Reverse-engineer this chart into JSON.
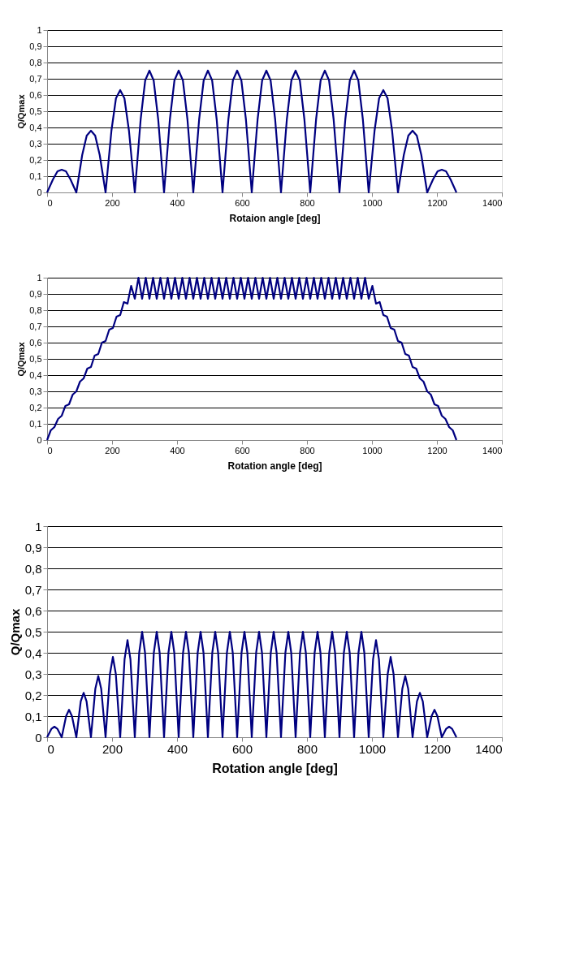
{
  "chart_data": [
    {
      "type": "line",
      "xlabel": "Rotaion angle [deg]",
      "ylabel": "Q/Qmax",
      "xlim": [
        0,
        1400
      ],
      "ylim": [
        0,
        1
      ],
      "xticks": [
        0,
        200,
        400,
        600,
        800,
        1000,
        1200,
        1400
      ],
      "yticks": [
        0,
        {
          "value": 0.1,
          "label": "0,1"
        },
        {
          "value": 0.2,
          "label": "0,2"
        },
        {
          "value": 0.3,
          "label": "0,3"
        },
        {
          "value": 0.4,
          "label": "0,4"
        },
        {
          "value": 0.5,
          "label": "0,5"
        },
        {
          "value": 0.6,
          "label": "0,6"
        },
        {
          "value": 0.7,
          "label": "0,7"
        },
        {
          "value": 0.8,
          "label": "0,8"
        },
        {
          "value": 0.9,
          "label": "0,9"
        },
        1
      ],
      "grid": "y",
      "marker": "none",
      "line_style": "solid",
      "series": [
        {
          "color": "#000080",
          "x": [
            0,
            18,
            32,
            45,
            58,
            72,
            90,
            108,
            122,
            135,
            148,
            162,
            180,
            198,
            212,
            225,
            238,
            252,
            270,
            288,
            302,
            315,
            328,
            342,
            360,
            378,
            392,
            405,
            418,
            432,
            450,
            468,
            482,
            495,
            508,
            522,
            540,
            558,
            572,
            585,
            598,
            612,
            630,
            648,
            662,
            675,
            688,
            702,
            720,
            738,
            752,
            765,
            778,
            792,
            810,
            828,
            842,
            855,
            868,
            882,
            900,
            918,
            932,
            945,
            958,
            972,
            990,
            1008,
            1022,
            1035,
            1048,
            1062,
            1080,
            1098,
            1112,
            1125,
            1138,
            1152,
            1170,
            1188,
            1202,
            1215,
            1228,
            1242,
            1260
          ],
          "values": [
            0,
            0.08,
            0.13,
            0.14,
            0.13,
            0.08,
            0,
            0.23,
            0.35,
            0.38,
            0.35,
            0.23,
            0,
            0.38,
            0.58,
            0.63,
            0.58,
            0.38,
            0,
            0.45,
            0.69,
            0.75,
            0.69,
            0.45,
            0,
            0.45,
            0.69,
            0.75,
            0.69,
            0.45,
            0,
            0.45,
            0.69,
            0.75,
            0.69,
            0.45,
            0,
            0.45,
            0.69,
            0.75,
            0.69,
            0.45,
            0,
            0.45,
            0.69,
            0.75,
            0.69,
            0.45,
            0,
            0.45,
            0.69,
            0.75,
            0.69,
            0.45,
            0,
            0.45,
            0.69,
            0.75,
            0.69,
            0.45,
            0,
            0.45,
            0.69,
            0.75,
            0.69,
            0.45,
            0,
            0.38,
            0.58,
            0.63,
            0.58,
            0.38,
            0,
            0.23,
            0.35,
            0.38,
            0.35,
            0.23,
            0,
            0.08,
            0.13,
            0.14,
            0.13,
            0.08,
            0
          ]
        }
      ]
    },
    {
      "type": "line",
      "xlabel": "Rotation angle [deg]",
      "ylabel": "Q/Qmax",
      "xlim": [
        0,
        1400
      ],
      "ylim": [
        0,
        1
      ],
      "xticks": [
        0,
        200,
        400,
        600,
        800,
        1000,
        1200,
        1400
      ],
      "yticks": [
        0,
        {
          "value": 0.1,
          "label": "0,1"
        },
        {
          "value": 0.2,
          "label": "0,2"
        },
        {
          "value": 0.3,
          "label": "0,3"
        },
        {
          "value": 0.4,
          "label": "0,4"
        },
        {
          "value": 0.5,
          "label": "0,5"
        },
        {
          "value": 0.6,
          "label": "0,6"
        },
        {
          "value": 0.7,
          "label": "0,7"
        },
        {
          "value": 0.8,
          "label": "0,8"
        },
        {
          "value": 0.9,
          "label": "0,9"
        },
        1
      ],
      "grid": "y",
      "marker": "none",
      "line_style": "solid",
      "series": [
        {
          "color": "#000080",
          "x": [
            0,
            11.25,
            22.5,
            33.75,
            45,
            56.25,
            67.5,
            78.75,
            90,
            101.25,
            112.5,
            123.75,
            135,
            146.25,
            157.5,
            168.75,
            180,
            191.25,
            202.5,
            213.75,
            225,
            236.25,
            247.5,
            258.75,
            270,
            281.25,
            292.5,
            303.75,
            315,
            326.25,
            337.5,
            348.75,
            360,
            371.25,
            382.5,
            393.75,
            405,
            416.25,
            427.5,
            438.75,
            450,
            461.25,
            472.5,
            483.75,
            495,
            506.25,
            517.5,
            528.75,
            540,
            551.25,
            562.5,
            573.75,
            585,
            596.25,
            607.5,
            618.75,
            630,
            641.25,
            652.5,
            663.75,
            675,
            686.25,
            697.5,
            708.75,
            720,
            731.25,
            742.5,
            753.75,
            765,
            776.25,
            787.5,
            798.75,
            810,
            821.25,
            832.5,
            843.75,
            855,
            866.25,
            877.5,
            888.75,
            900,
            911.25,
            922.5,
            933.75,
            945,
            956.25,
            967.5,
            978.75,
            990,
            1001.25,
            1012.5,
            1023.75,
            1035,
            1046.25,
            1057.5,
            1068.75,
            1080,
            1091.25,
            1102.5,
            1113.75,
            1125,
            1136.25,
            1147.5,
            1158.75,
            1170,
            1181.25,
            1192.5,
            1203.75,
            1215,
            1226.25,
            1237.5,
            1248.75,
            1260
          ],
          "values": [
            0,
            0.06,
            0.08,
            0.13,
            0.15,
            0.21,
            0.22,
            0.28,
            0.3,
            0.36,
            0.38,
            0.44,
            0.45,
            0.52,
            0.53,
            0.6,
            0.61,
            0.68,
            0.69,
            0.76,
            0.77,
            0.85,
            0.84,
            0.95,
            0.87,
            1,
            0.87,
            1,
            0.87,
            1,
            0.87,
            1,
            0.87,
            1,
            0.87,
            1,
            0.87,
            1,
            0.87,
            1,
            0.87,
            1,
            0.87,
            1,
            0.87,
            1,
            0.87,
            1,
            0.87,
            1,
            0.87,
            1,
            0.87,
            1,
            0.87,
            1,
            0.87,
            1,
            0.87,
            1,
            0.87,
            1,
            0.87,
            1,
            0.87,
            1,
            0.87,
            1,
            0.87,
            1,
            0.87,
            1,
            0.87,
            1,
            0.87,
            1,
            0.87,
            1,
            0.87,
            1,
            0.87,
            1,
            0.87,
            1,
            0.87,
            1,
            0.87,
            1,
            0.87,
            0.95,
            0.84,
            0.85,
            0.77,
            0.76,
            0.69,
            0.68,
            0.61,
            0.6,
            0.53,
            0.52,
            0.45,
            0.44,
            0.38,
            0.36,
            0.3,
            0.28,
            0.22,
            0.21,
            0.15,
            0.13,
            0.08,
            0.06,
            0
          ]
        }
      ]
    },
    {
      "type": "line",
      "xlabel": "Rotation angle [deg]",
      "ylabel": "Q/Qmax",
      "xlim": [
        0,
        1400
      ],
      "ylim": [
        0,
        1
      ],
      "xticks": [
        0,
        200,
        400,
        600,
        800,
        1000,
        1200,
        1400
      ],
      "yticks": [
        0,
        {
          "value": 0.1,
          "label": "0,1"
        },
        {
          "value": 0.2,
          "label": "0,2"
        },
        {
          "value": 0.3,
          "label": "0,3"
        },
        {
          "value": 0.4,
          "label": "0,4"
        },
        {
          "value": 0.5,
          "label": "0,5"
        },
        {
          "value": 0.6,
          "label": "0,6"
        },
        {
          "value": 0.7,
          "label": "0,7"
        },
        {
          "value": 0.8,
          "label": "0,8"
        },
        {
          "value": 0.9,
          "label": "0,9"
        },
        1
      ],
      "grid": "y",
      "marker": "none",
      "line_style": "solid",
      "series": [
        {
          "color": "#000080",
          "x": [
            0,
            13.5,
            22.5,
            31.5,
            45,
            58.5,
            67.5,
            76.5,
            90,
            103.5,
            112.5,
            121.5,
            135,
            148.5,
            157.5,
            166.5,
            180,
            193.5,
            202.5,
            211.5,
            225,
            238.5,
            247.5,
            256.5,
            270,
            283.5,
            292.5,
            301.5,
            315,
            328.5,
            337.5,
            346.5,
            360,
            373.5,
            382.5,
            391.5,
            405,
            418.5,
            427.5,
            436.5,
            450,
            463.5,
            472.5,
            481.5,
            495,
            508.5,
            517.5,
            526.5,
            540,
            553.5,
            562.5,
            571.5,
            585,
            598.5,
            607.5,
            616.5,
            630,
            643.5,
            652.5,
            661.5,
            675,
            688.5,
            697.5,
            706.5,
            720,
            733.5,
            742.5,
            751.5,
            765,
            778.5,
            787.5,
            796.5,
            810,
            823.5,
            832.5,
            841.5,
            855,
            868.5,
            877.5,
            886.5,
            900,
            913.5,
            922.5,
            931.5,
            945,
            958.5,
            967.5,
            976.5,
            990,
            1003.5,
            1012.5,
            1021.5,
            1035,
            1048.5,
            1057.5,
            1066.5,
            1080,
            1093.5,
            1102.5,
            1111.5,
            1125,
            1138.5,
            1147.5,
            1156.5,
            1170,
            1183.5,
            1192.5,
            1201.5,
            1215,
            1228.5,
            1237.5,
            1246.5,
            1260
          ],
          "values": [
            0,
            0.04,
            0.05,
            0.04,
            0,
            0.1,
            0.13,
            0.1,
            0,
            0.17,
            0.21,
            0.17,
            0,
            0.23,
            0.29,
            0.23,
            0,
            0.3,
            0.38,
            0.3,
            0,
            0.37,
            0.46,
            0.37,
            0,
            0.4,
            0.5,
            0.4,
            0,
            0.4,
            0.5,
            0.4,
            0,
            0.4,
            0.5,
            0.4,
            0,
            0.4,
            0.5,
            0.4,
            0,
            0.4,
            0.5,
            0.4,
            0,
            0.4,
            0.5,
            0.4,
            0,
            0.4,
            0.5,
            0.4,
            0,
            0.4,
            0.5,
            0.4,
            0,
            0.4,
            0.5,
            0.4,
            0,
            0.4,
            0.5,
            0.4,
            0,
            0.4,
            0.5,
            0.4,
            0,
            0.4,
            0.5,
            0.4,
            0,
            0.4,
            0.5,
            0.4,
            0,
            0.4,
            0.5,
            0.4,
            0,
            0.4,
            0.5,
            0.4,
            0,
            0.4,
            0.5,
            0.4,
            0,
            0.37,
            0.46,
            0.37,
            0,
            0.3,
            0.38,
            0.3,
            0,
            0.23,
            0.29,
            0.23,
            0,
            0.17,
            0.21,
            0.17,
            0,
            0.1,
            0.13,
            0.1,
            0,
            0.04,
            0.05,
            0.04,
            0
          ]
        }
      ]
    }
  ]
}
